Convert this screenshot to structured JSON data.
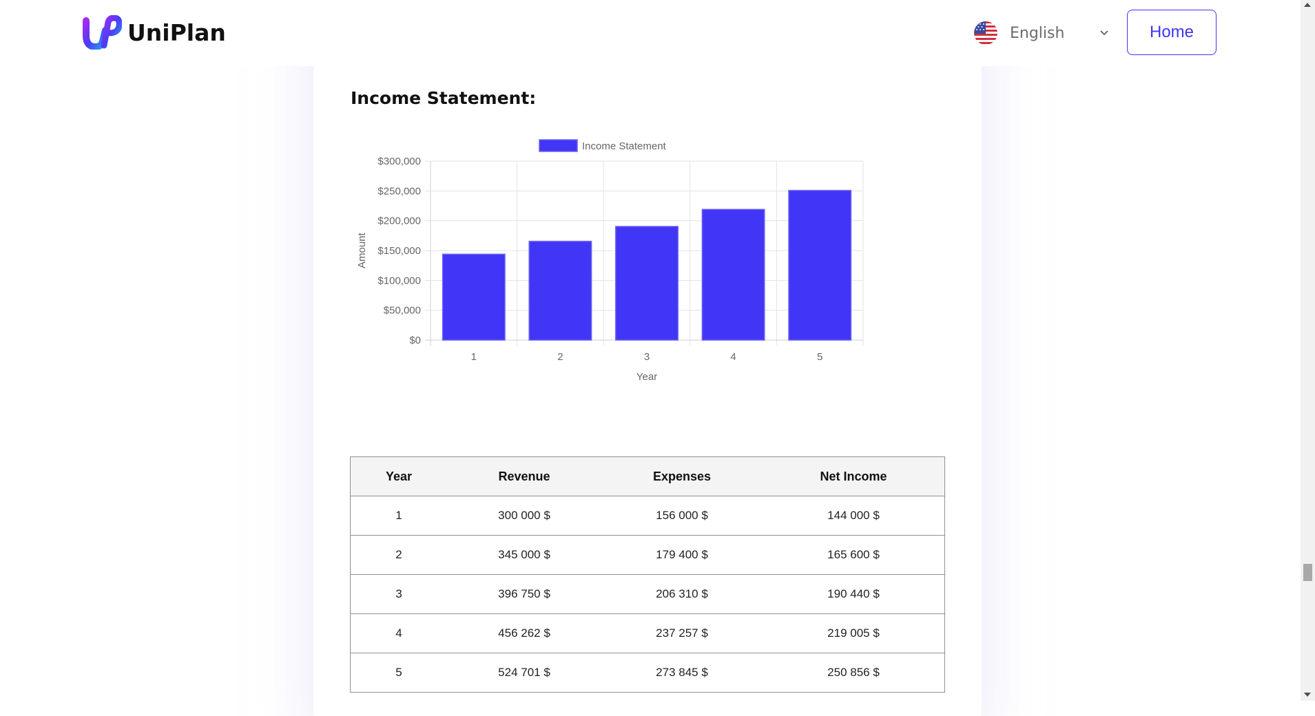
{
  "header": {
    "brand": "UniPlan",
    "language": "English",
    "home_label": "Home"
  },
  "section": {
    "title": "Income Statement:"
  },
  "chart_data": {
    "type": "bar",
    "title": "",
    "legend": [
      "Income Statement"
    ],
    "categories": [
      "1",
      "2",
      "3",
      "4",
      "5"
    ],
    "values": [
      144000,
      165600,
      190440,
      219005,
      250856
    ],
    "xlabel": "Year",
    "ylabel": "Amount",
    "ylim": [
      0,
      300000
    ],
    "yticks": [
      {
        "value": 0,
        "label": "$0"
      },
      {
        "value": 50000,
        "label": "$50,000"
      },
      {
        "value": 100000,
        "label": "$100,000"
      },
      {
        "value": 150000,
        "label": "$150,000"
      },
      {
        "value": 200000,
        "label": "$200,000"
      },
      {
        "value": 250000,
        "label": "$250,000"
      },
      {
        "value": 300000,
        "label": "$300,000"
      }
    ],
    "color": "#4136f5",
    "grid": true
  },
  "table": {
    "headers": [
      "Year",
      "Revenue",
      "Expenses",
      "Net Income"
    ],
    "rows": [
      [
        "1",
        "300 000 $",
        "156 000 $",
        "144 000 $"
      ],
      [
        "2",
        "345 000 $",
        "179 400 $",
        "165 600 $"
      ],
      [
        "3",
        "396 750 $",
        "206 310 $",
        "190 440 $"
      ],
      [
        "4",
        "456 262 $",
        "237 257 $",
        "219 005 $"
      ],
      [
        "5",
        "524 701 $",
        "273 845 $",
        "250 856 $"
      ]
    ]
  }
}
